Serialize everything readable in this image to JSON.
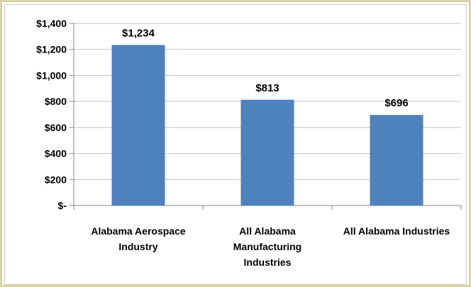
{
  "chart_data": {
    "type": "bar",
    "title": "",
    "xlabel": "",
    "ylabel": "",
    "categories": [
      [
        "Alabama Aerospace",
        "Industry"
      ],
      [
        "All Alabama",
        "Manufacturing",
        "Industries"
      ],
      [
        "All Alabama Industries"
      ]
    ],
    "values": [
      1234,
      813,
      696
    ],
    "data_labels": [
      "$1,234",
      "$813",
      "$696"
    ],
    "ylim": [
      0,
      1400
    ],
    "yticks": [
      0,
      200,
      400,
      600,
      800,
      1000,
      1200,
      1400
    ],
    "ytick_labels": [
      "$-",
      "$200",
      "$400",
      "$600",
      "$800",
      "$1,000",
      "$1,200",
      "$1,400"
    ],
    "grid": true,
    "legend": "none",
    "bar_color": "#4f81bd",
    "grid_color": "#c0c0c0"
  }
}
